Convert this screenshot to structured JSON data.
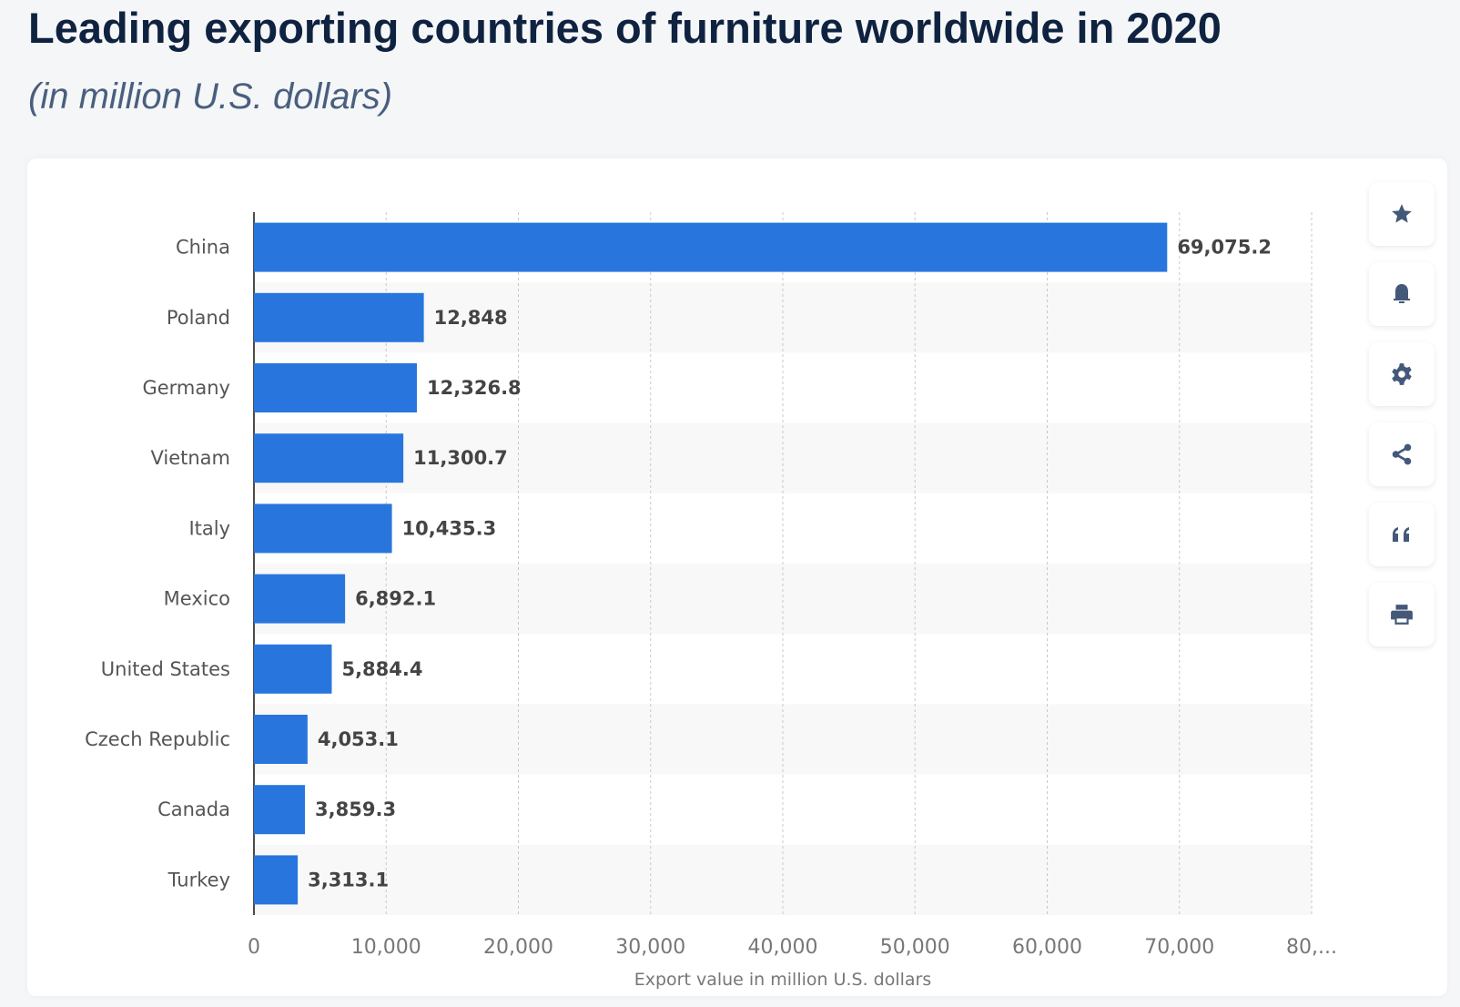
{
  "header": {
    "title": "Leading exporting countries of furniture worldwide in 2020",
    "subtitle": "(in million U.S. dollars)"
  },
  "toolbar": {
    "icons": [
      "star-icon",
      "bell-icon",
      "gear-icon",
      "share-icon",
      "quote-icon",
      "print-icon"
    ]
  },
  "chart_data": {
    "type": "bar",
    "orientation": "horizontal",
    "categories": [
      "China",
      "Poland",
      "Germany",
      "Vietnam",
      "Italy",
      "Mexico",
      "United States",
      "Czech Republic",
      "Canada",
      "Turkey"
    ],
    "values": [
      69075.2,
      12848,
      12326.8,
      11300.7,
      10435.3,
      6892.1,
      5884.4,
      4053.1,
      3859.3,
      3313.1
    ],
    "data_labels": [
      "69,075.2",
      "12,848",
      "12,326.8",
      "11,300.7",
      "10,435.3",
      "6,892.1",
      "5,884.4",
      "4,053.1",
      "3,859.3",
      "3,313.1"
    ],
    "xlabel": "Export value in million U.S. dollars",
    "ylabel": "",
    "xlim": [
      0,
      80000
    ],
    "x_ticks": [
      "0",
      "10,000",
      "20,000",
      "30,000",
      "40,000",
      "50,000",
      "60,000",
      "70,000",
      "80,..."
    ],
    "grid": true,
    "bar_color": "#2876dd"
  }
}
